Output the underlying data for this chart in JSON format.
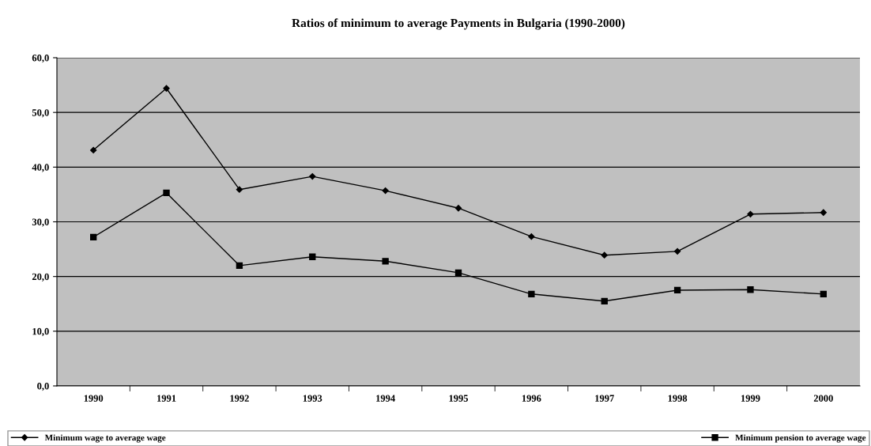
{
  "chart_data": {
    "type": "line",
    "title": "Ratios of minimum to average Payments in Bulgaria (1990-2000)",
    "categories": [
      "1990",
      "1991",
      "1992",
      "1993",
      "1994",
      "1995",
      "1996",
      "1997",
      "1998",
      "1999",
      "2000"
    ],
    "series": [
      {
        "name": "Minimum wage to average wage",
        "color": "#000000",
        "marker": "diamond",
        "values": [
          43.1,
          54.4,
          35.9,
          38.3,
          35.7,
          32.5,
          27.3,
          23.9,
          24.6,
          31.4,
          31.7
        ]
      },
      {
        "name": "Minimum pension to average wage",
        "color": "#000000",
        "marker": "square",
        "values": [
          27.2,
          35.3,
          22.0,
          23.6,
          22.8,
          20.7,
          16.8,
          15.5,
          17.5,
          17.6,
          16.8
        ]
      }
    ],
    "ylim": [
      0,
      60
    ],
    "yticks": [
      {
        "value": 0,
        "label": "0,0"
      },
      {
        "value": 10,
        "label": "10,0"
      },
      {
        "value": 20,
        "label": "20,0"
      },
      {
        "value": 30,
        "label": "30,0"
      },
      {
        "value": 40,
        "label": "40,0"
      },
      {
        "value": 50,
        "label": "50,0"
      },
      {
        "value": 60,
        "label": "60,0"
      }
    ],
    "grid": "y",
    "legend": "bottom",
    "line_style": "solid"
  }
}
